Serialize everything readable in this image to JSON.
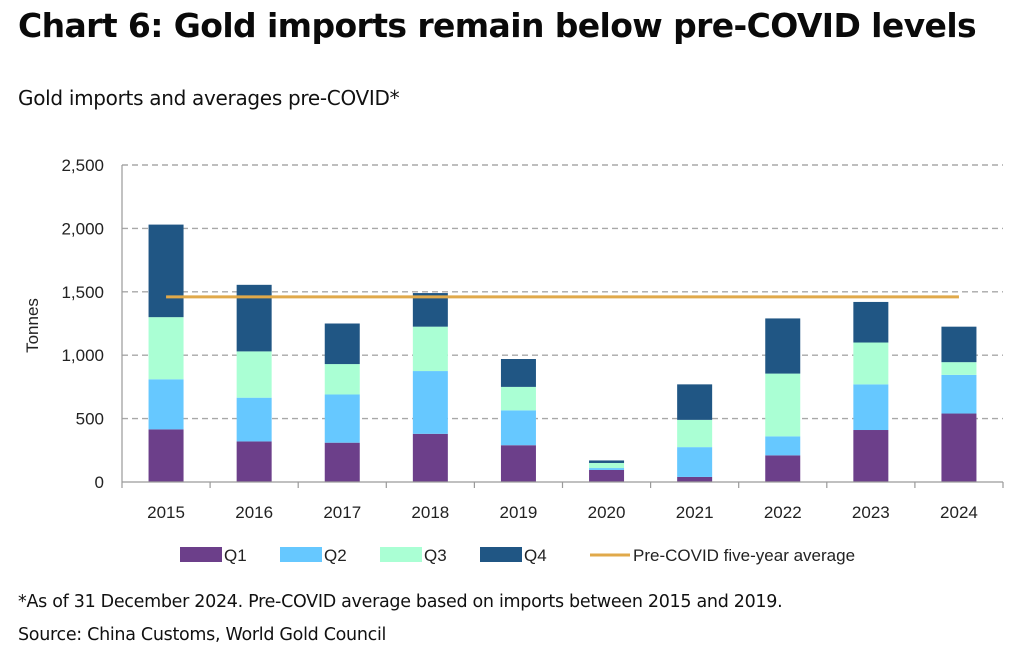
{
  "header": {
    "title": "Chart 6: Gold imports remain below pre-COVID levels",
    "subtitle": "Gold imports and averages pre-COVID*"
  },
  "footer": {
    "footnote": "*As of 31 December 2024. Pre-COVID average based on imports between 2015 and 2019.",
    "source": "Source: China Customs, World Gold Council"
  },
  "chart_data": {
    "type": "bar",
    "stacked": true,
    "title": "Gold imports and averages pre-COVID*",
    "xlabel": "",
    "ylabel": "Tonnes",
    "ylim": [
      0,
      2500
    ],
    "yticks": [
      0,
      500,
      1000,
      1500,
      2000,
      2500
    ],
    "ytick_labels": [
      "0",
      "500",
      "1,000",
      "1,500",
      "2,000",
      "2,500"
    ],
    "grid": "horizontal-dashed",
    "categories": [
      "2015",
      "2016",
      "2017",
      "2018",
      "2019",
      "2020",
      "2021",
      "2022",
      "2023",
      "2024"
    ],
    "series": [
      {
        "name": "Q1",
        "color": "#6c3f8a",
        "values": [
          415,
          320,
          310,
          380,
          290,
          95,
          40,
          210,
          410,
          540
        ]
      },
      {
        "name": "Q2",
        "color": "#66c8ff",
        "values": [
          395,
          345,
          380,
          495,
          275,
          15,
          235,
          150,
          360,
          305
        ]
      },
      {
        "name": "Q3",
        "color": "#aaffd4",
        "values": [
          490,
          365,
          240,
          350,
          185,
          40,
          215,
          495,
          330,
          100
        ]
      },
      {
        "name": "Q4",
        "color": "#205684",
        "values": [
          730,
          525,
          320,
          265,
          220,
          20,
          280,
          435,
          320,
          280
        ]
      }
    ],
    "reference_line": {
      "name": "Pre-COVID five-year average",
      "color": "#e0a94a",
      "value": 1460,
      "from_category": "2015",
      "to_category": "2024"
    },
    "legend": {
      "placement": "bottom",
      "entries": [
        "Q1",
        "Q2",
        "Q3",
        "Q4",
        "Pre-COVID five-year average"
      ]
    }
  }
}
